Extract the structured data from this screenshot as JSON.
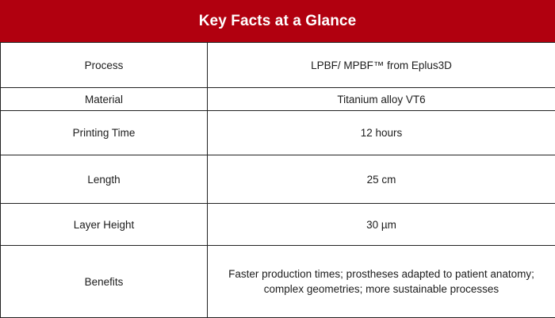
{
  "header": {
    "title": "Key Facts at a Glance",
    "background_color": "#b1000f",
    "text_color": "#ffffff"
  },
  "facts": [
    {
      "label": "Process",
      "value": "LPBF/ MPBF™ from Eplus3D"
    },
    {
      "label": "Material",
      "value": "Titanium alloy VT6"
    },
    {
      "label": "Printing Time",
      "value": "12 hours"
    },
    {
      "label": "Length",
      "value": "25 cm"
    },
    {
      "label": "Layer Height",
      "value": "30 µm"
    },
    {
      "label": "Benefits",
      "value": "Faster production times; prostheses adapted to patient anatomy; complex geometries; more sustainable processes"
    }
  ]
}
